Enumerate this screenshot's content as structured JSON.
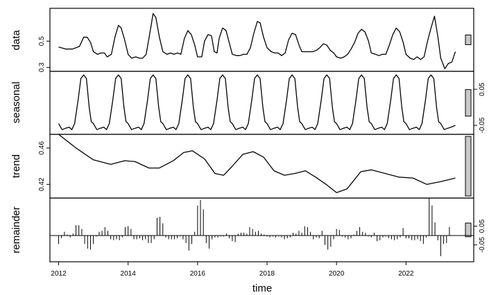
{
  "chart_data": {
    "type": "line",
    "xlabel": "time",
    "x_ticks": [
      2012,
      2014,
      2016,
      2018,
      2020,
      2022
    ],
    "xlim": [
      2011.75,
      2023.95
    ],
    "panels": [
      {
        "name": "data",
        "type": "line",
        "ylim": [
          0.27,
          0.75
        ],
        "y_ticks": [
          0.3,
          0.5
        ],
        "y_tick_side": "left",
        "points": [
          [
            2012.0,
            0.455
          ],
          [
            2012.2,
            0.44
          ],
          [
            2012.4,
            0.44
          ],
          [
            2012.6,
            0.46
          ],
          [
            2012.72,
            0.53
          ],
          [
            2012.82,
            0.53
          ],
          [
            2012.92,
            0.49
          ],
          [
            2013.0,
            0.42
          ],
          [
            2013.12,
            0.4
          ],
          [
            2013.22,
            0.41
          ],
          [
            2013.32,
            0.41
          ],
          [
            2013.4,
            0.38
          ],
          [
            2013.52,
            0.4
          ],
          [
            2013.62,
            0.53
          ],
          [
            2013.72,
            0.62
          ],
          [
            2013.8,
            0.6
          ],
          [
            2013.9,
            0.51
          ],
          [
            2014.0,
            0.4
          ],
          [
            2014.1,
            0.37
          ],
          [
            2014.22,
            0.38
          ],
          [
            2014.32,
            0.37
          ],
          [
            2014.42,
            0.37
          ],
          [
            2014.52,
            0.4
          ],
          [
            2014.62,
            0.55
          ],
          [
            2014.72,
            0.71
          ],
          [
            2014.8,
            0.68
          ],
          [
            2014.9,
            0.53
          ],
          [
            2015.0,
            0.42
          ],
          [
            2015.12,
            0.4
          ],
          [
            2015.22,
            0.41
          ],
          [
            2015.32,
            0.4
          ],
          [
            2015.42,
            0.41
          ],
          [
            2015.52,
            0.4
          ],
          [
            2015.62,
            0.52
          ],
          [
            2015.72,
            0.58
          ],
          [
            2015.82,
            0.55
          ],
          [
            2015.92,
            0.47
          ],
          [
            2016.0,
            0.38
          ],
          [
            2016.12,
            0.38
          ],
          [
            2016.2,
            0.5
          ],
          [
            2016.3,
            0.55
          ],
          [
            2016.4,
            0.54
          ],
          [
            2016.48,
            0.42
          ],
          [
            2016.56,
            0.41
          ],
          [
            2016.62,
            0.52
          ],
          [
            2016.72,
            0.6
          ],
          [
            2016.82,
            0.58
          ],
          [
            2016.92,
            0.48
          ],
          [
            2017.0,
            0.4
          ],
          [
            2017.12,
            0.39
          ],
          [
            2017.22,
            0.39
          ],
          [
            2017.32,
            0.4
          ],
          [
            2017.42,
            0.4
          ],
          [
            2017.52,
            0.45
          ],
          [
            2017.62,
            0.56
          ],
          [
            2017.72,
            0.65
          ],
          [
            2017.8,
            0.64
          ],
          [
            2017.9,
            0.53
          ],
          [
            2018.0,
            0.45
          ],
          [
            2018.12,
            0.42
          ],
          [
            2018.22,
            0.41
          ],
          [
            2018.32,
            0.41
          ],
          [
            2018.42,
            0.39
          ],
          [
            2018.52,
            0.41
          ],
          [
            2018.62,
            0.51
          ],
          [
            2018.72,
            0.56
          ],
          [
            2018.82,
            0.55
          ],
          [
            2018.92,
            0.47
          ],
          [
            2019.0,
            0.42
          ],
          [
            2019.12,
            0.42
          ],
          [
            2019.22,
            0.42
          ],
          [
            2019.32,
            0.42
          ],
          [
            2019.42,
            0.43
          ],
          [
            2019.52,
            0.45
          ],
          [
            2019.62,
            0.48
          ],
          [
            2019.72,
            0.47
          ],
          [
            2019.82,
            0.43
          ],
          [
            2019.92,
            0.41
          ],
          [
            2020.0,
            0.38
          ],
          [
            2020.12,
            0.37
          ],
          [
            2020.22,
            0.38
          ],
          [
            2020.32,
            0.4
          ],
          [
            2020.42,
            0.44
          ],
          [
            2020.52,
            0.49
          ],
          [
            2020.62,
            0.56
          ],
          [
            2020.72,
            0.59
          ],
          [
            2020.82,
            0.57
          ],
          [
            2020.92,
            0.5
          ],
          [
            2021.0,
            0.41
          ],
          [
            2021.12,
            0.4
          ],
          [
            2021.22,
            0.39
          ],
          [
            2021.32,
            0.4
          ],
          [
            2021.42,
            0.4
          ],
          [
            2021.52,
            0.47
          ],
          [
            2021.62,
            0.55
          ],
          [
            2021.72,
            0.6
          ],
          [
            2021.82,
            0.57
          ],
          [
            2021.92,
            0.49
          ],
          [
            2022.0,
            0.4
          ],
          [
            2022.12,
            0.37
          ],
          [
            2022.22,
            0.36
          ],
          [
            2022.32,
            0.38
          ],
          [
            2022.42,
            0.36
          ],
          [
            2022.52,
            0.38
          ],
          [
            2022.62,
            0.5
          ],
          [
            2022.72,
            0.6
          ],
          [
            2022.82,
            0.69
          ],
          [
            2022.92,
            0.53
          ],
          [
            2023.0,
            0.37
          ],
          [
            2023.12,
            0.29
          ],
          [
            2023.22,
            0.33
          ],
          [
            2023.32,
            0.34
          ],
          [
            2023.42,
            0.42
          ]
        ]
      },
      {
        "name": "seasonal",
        "type": "line",
        "ylim": [
          -0.075,
          0.1
        ],
        "y_ticks": [
          -0.05,
          0.05
        ],
        "y_tick_side": "right",
        "peak_years": [
          2012,
          2013,
          2014,
          2015,
          2016,
          2017,
          2018,
          2019,
          2020,
          2021,
          2022
        ],
        "cycle": [
          [
            0.0,
            -0.045
          ],
          [
            0.1,
            -0.062
          ],
          [
            0.2,
            -0.058
          ],
          [
            0.3,
            -0.055
          ],
          [
            0.38,
            -0.062
          ],
          [
            0.46,
            -0.045
          ],
          [
            0.56,
            0.02
          ],
          [
            0.64,
            0.08
          ],
          [
            0.72,
            0.09
          ],
          [
            0.8,
            0.08
          ],
          [
            0.88,
            0.0
          ],
          [
            0.94,
            -0.04
          ]
        ],
        "tail": [
          [
            2023.0,
            -0.045
          ],
          [
            2023.1,
            -0.062
          ],
          [
            2023.2,
            -0.058
          ],
          [
            2023.3,
            -0.055
          ],
          [
            2023.42,
            -0.05
          ]
        ]
      },
      {
        "name": "trend",
        "type": "line",
        "ylim": [
          0.405,
          0.475
        ],
        "y_ticks": [
          0.42,
          0.46
        ],
        "y_tick_side": "left",
        "points": [
          [
            2012.0,
            0.475
          ],
          [
            2012.5,
            0.46
          ],
          [
            2013.0,
            0.447
          ],
          [
            2013.5,
            0.442
          ],
          [
            2013.9,
            0.446
          ],
          [
            2014.2,
            0.445
          ],
          [
            2014.6,
            0.438
          ],
          [
            2014.9,
            0.438
          ],
          [
            2015.3,
            0.446
          ],
          [
            2015.6,
            0.455
          ],
          [
            2015.85,
            0.457
          ],
          [
            2016.2,
            0.448
          ],
          [
            2016.5,
            0.432
          ],
          [
            2016.75,
            0.43
          ],
          [
            2017.0,
            0.44
          ],
          [
            2017.3,
            0.453
          ],
          [
            2017.6,
            0.456
          ],
          [
            2017.9,
            0.45
          ],
          [
            2018.2,
            0.435
          ],
          [
            2018.5,
            0.43
          ],
          [
            2018.8,
            0.432
          ],
          [
            2019.1,
            0.435
          ],
          [
            2019.4,
            0.428
          ],
          [
            2019.7,
            0.42
          ],
          [
            2020.0,
            0.411
          ],
          [
            2020.3,
            0.415
          ],
          [
            2020.7,
            0.434
          ],
          [
            2021.0,
            0.436
          ],
          [
            2021.4,
            0.432
          ],
          [
            2021.8,
            0.428
          ],
          [
            2022.2,
            0.427
          ],
          [
            2022.6,
            0.42
          ],
          [
            2023.0,
            0.423
          ],
          [
            2023.42,
            0.427
          ]
        ]
      },
      {
        "name": "remainder",
        "type": "bar",
        "ylim": [
          -0.14,
          0.2
        ],
        "y_ticks": [
          -0.05,
          0.05
        ],
        "y_tick_side": "right",
        "x_start": 2012.0,
        "x_step": 0.083333,
        "values": [
          -0.045,
          -0.015,
          0.02,
          0.005,
          -0.01,
          0.01,
          0.055,
          0.055,
          0.035,
          -0.045,
          -0.07,
          -0.075,
          -0.045,
          -0.005,
          0.02,
          0.025,
          0.045,
          0.025,
          -0.02,
          -0.025,
          -0.02,
          -0.025,
          -0.01,
          0.045,
          0.05,
          0.035,
          -0.02,
          -0.02,
          -0.015,
          -0.025,
          -0.02,
          -0.04,
          -0.04,
          -0.02,
          0.095,
          0.1,
          0.065,
          -0.01,
          -0.02,
          -0.02,
          -0.02,
          -0.015,
          -0.005,
          -0.02,
          -0.04,
          -0.08,
          -0.045,
          0.02,
          0.16,
          0.19,
          0.14,
          -0.04,
          -0.07,
          -0.02,
          -0.01,
          -0.01,
          -0.005,
          -0.005,
          0.01,
          -0.015,
          -0.03,
          -0.035,
          0.01,
          0.015,
          0.015,
          0.01,
          0.045,
          0.035,
          0.02,
          0.025,
          0.01,
          0.005,
          -0.005,
          -0.01,
          -0.005,
          -0.01,
          -0.005,
          -0.01,
          -0.02,
          -0.015,
          -0.01,
          0.015,
          0.01,
          0.025,
          0.015,
          0.05,
          0.045,
          0.02,
          -0.02,
          -0.01,
          -0.015,
          0.025,
          -0.05,
          -0.075,
          -0.06,
          -0.02,
          0.035,
          0.03,
          -0.005,
          -0.01,
          -0.02,
          -0.015,
          0.005,
          0.025,
          0.045,
          0.02,
          0.015,
          -0.005,
          -0.01,
          0.015,
          -0.03,
          -0.025,
          -0.01,
          -0.005,
          -0.015,
          -0.02,
          -0.025,
          -0.02,
          -0.01,
          0.04,
          -0.015,
          -0.015,
          -0.025,
          -0.025,
          -0.02,
          -0.03,
          -0.045,
          -0.01,
          0.2,
          0.16,
          0.07,
          -0.025,
          -0.11,
          -0.045,
          -0.04,
          0.045
        ]
      }
    ]
  }
}
